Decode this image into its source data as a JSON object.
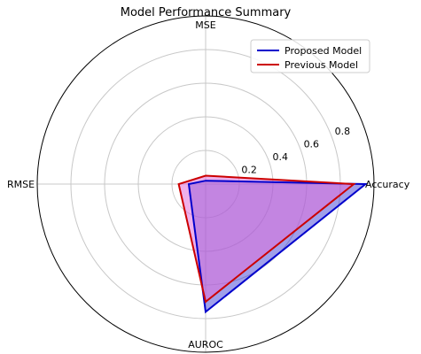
{
  "chart_data": {
    "type": "radar",
    "title": "Model Performance Summary",
    "axes": [
      "Accuracy",
      "MSE",
      "RMSE",
      "AUROC"
    ],
    "rlim": [
      0,
      1
    ],
    "rticks": [
      0.2,
      0.4,
      0.6,
      0.8
    ],
    "rtick_labels": [
      "0.2",
      "0.4",
      "0.6",
      "0.8"
    ],
    "grid": true,
    "legend_position": "top-right",
    "series": [
      {
        "name": "Proposed Model",
        "values": [
          0.95,
          0.02,
          0.1,
          0.76
        ],
        "color": "#0000cc"
      },
      {
        "name": "Previous Model",
        "values": [
          0.88,
          0.05,
          0.16,
          0.7
        ],
        "color": "#cc0000"
      }
    ],
    "fill_color": "#e070d8"
  }
}
